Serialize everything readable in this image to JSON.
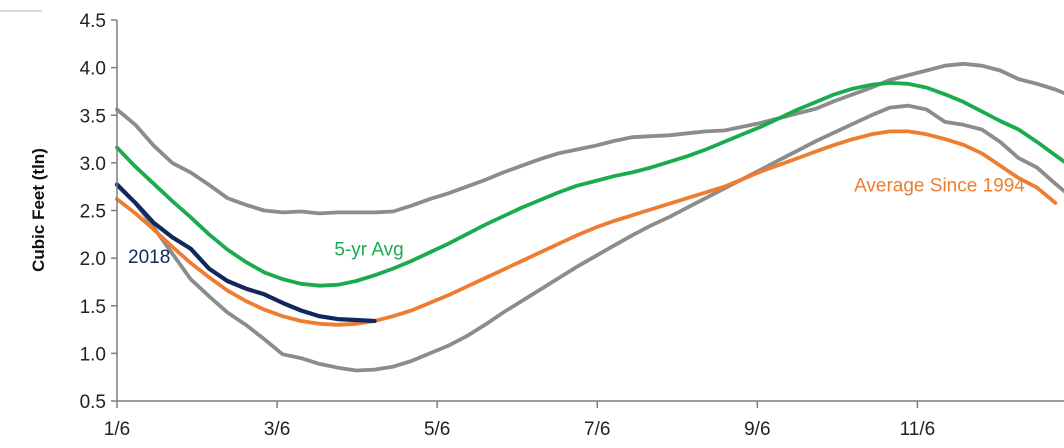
{
  "chart_data": {
    "type": "line",
    "title": "",
    "xlabel": "",
    "ylabel": "Cubic Feet (tln)",
    "ylim": [
      0.5,
      4.5
    ],
    "yticks": [
      "0.5",
      "1.0",
      "1.5",
      "2.0",
      "2.5",
      "3.0",
      "3.5",
      "4.0",
      "4.5"
    ],
    "xlim": [
      0,
      52
    ],
    "xticks": [
      {
        "x": 0,
        "label": "1/6"
      },
      {
        "x": 8.7,
        "label": "3/6"
      },
      {
        "x": 17.4,
        "label": "5/6"
      },
      {
        "x": 26.1,
        "label": "7/6"
      },
      {
        "x": 34.8,
        "label": "9/6"
      },
      {
        "x": 43.5,
        "label": "11/6"
      }
    ],
    "grid": false,
    "series": [
      {
        "key": "max",
        "color": "#8c8c8c",
        "x": [
          0,
          1,
          2,
          3,
          4,
          5,
          6,
          7,
          8,
          9,
          10,
          11,
          12,
          13,
          14,
          15,
          16,
          17,
          18,
          19,
          20,
          21,
          22,
          23,
          24,
          25,
          26,
          27,
          28,
          29,
          30,
          31,
          32,
          33,
          34,
          35,
          36,
          37,
          38,
          39,
          40,
          41,
          42,
          43,
          44,
          45,
          46,
          47,
          48,
          49,
          50,
          51,
          52
        ],
        "y": [
          3.56,
          3.4,
          3.18,
          3.0,
          2.9,
          2.77,
          2.63,
          2.56,
          2.5,
          2.48,
          2.49,
          2.47,
          2.48,
          2.48,
          2.48,
          2.49,
          2.55,
          2.62,
          2.68,
          2.75,
          2.82,
          2.9,
          2.97,
          3.04,
          3.1,
          3.14,
          3.18,
          3.23,
          3.27,
          3.28,
          3.29,
          3.31,
          3.33,
          3.34,
          3.38,
          3.42,
          3.47,
          3.52,
          3.57,
          3.65,
          3.72,
          3.79,
          3.87,
          3.92,
          3.97,
          4.02,
          4.04,
          4.02,
          3.97,
          3.88,
          3.83,
          3.77,
          3.69
        ]
      },
      {
        "key": "min",
        "color": "#8c8c8c",
        "x": [
          0,
          1,
          2,
          3,
          4,
          5,
          6,
          7,
          8,
          9,
          10,
          11,
          12,
          13,
          14,
          15,
          16,
          17,
          18,
          19,
          20,
          21,
          22,
          23,
          24,
          25,
          26,
          27,
          28,
          29,
          30,
          31,
          32,
          33,
          34,
          35,
          36,
          37,
          38,
          39,
          40,
          41,
          42,
          43,
          44,
          45,
          46,
          47,
          48,
          49,
          50,
          51,
          52
        ],
        "y": [
          2.78,
          2.58,
          2.32,
          2.05,
          1.78,
          1.6,
          1.43,
          1.3,
          1.15,
          0.99,
          0.95,
          0.89,
          0.85,
          0.82,
          0.83,
          0.86,
          0.92,
          1.0,
          1.08,
          1.18,
          1.3,
          1.43,
          1.55,
          1.67,
          1.79,
          1.91,
          2.02,
          2.13,
          2.24,
          2.34,
          2.43,
          2.53,
          2.63,
          2.73,
          2.83,
          2.93,
          3.03,
          3.13,
          3.23,
          3.32,
          3.41,
          3.5,
          3.58,
          3.6,
          3.56,
          3.43,
          3.4,
          3.35,
          3.22,
          3.05,
          2.95,
          2.78,
          2.62
        ]
      },
      {
        "key": "avg5",
        "color": "#1aac4c",
        "x": [
          0,
          1,
          2,
          3,
          4,
          5,
          6,
          7,
          8,
          9,
          10,
          11,
          12,
          13,
          14,
          15,
          16,
          17,
          18,
          19,
          20,
          21,
          22,
          23,
          24,
          25,
          26,
          27,
          28,
          29,
          30,
          31,
          32,
          33,
          34,
          35,
          36,
          37,
          38,
          39,
          40,
          41,
          42,
          43,
          44,
          45,
          46,
          47,
          48,
          49,
          50,
          51,
          52
        ],
        "y": [
          3.16,
          2.96,
          2.78,
          2.6,
          2.43,
          2.25,
          2.09,
          1.96,
          1.85,
          1.78,
          1.73,
          1.71,
          1.72,
          1.76,
          1.82,
          1.89,
          1.97,
          2.06,
          2.15,
          2.25,
          2.35,
          2.44,
          2.53,
          2.61,
          2.69,
          2.76,
          2.81,
          2.86,
          2.9,
          2.95,
          3.01,
          3.07,
          3.14,
          3.22,
          3.3,
          3.38,
          3.47,
          3.56,
          3.64,
          3.72,
          3.78,
          3.82,
          3.84,
          3.83,
          3.79,
          3.72,
          3.64,
          3.54,
          3.44,
          3.35,
          3.22,
          3.08,
          2.94
        ]
      },
      {
        "key": "avg1994",
        "color": "#ee7d31",
        "x": [
          0,
          1,
          2,
          3,
          4,
          5,
          6,
          7,
          8,
          9,
          10,
          11,
          12,
          13,
          14,
          15,
          16,
          17,
          18,
          19,
          20,
          21,
          22,
          23,
          24,
          25,
          26,
          27,
          28,
          29,
          30,
          31,
          32,
          33,
          34,
          35,
          36,
          37,
          38,
          39,
          40,
          41,
          42,
          43,
          44,
          45,
          46,
          47,
          48,
          49,
          50,
          51
        ],
        "y": [
          2.62,
          2.47,
          2.3,
          2.12,
          1.95,
          1.8,
          1.66,
          1.55,
          1.46,
          1.39,
          1.34,
          1.31,
          1.3,
          1.31,
          1.34,
          1.39,
          1.45,
          1.53,
          1.61,
          1.7,
          1.79,
          1.88,
          1.97,
          2.06,
          2.15,
          2.24,
          2.32,
          2.39,
          2.45,
          2.51,
          2.57,
          2.63,
          2.69,
          2.75,
          2.83,
          2.91,
          2.98,
          3.05,
          3.12,
          3.19,
          3.25,
          3.3,
          3.33,
          3.33,
          3.3,
          3.25,
          3.19,
          3.1,
          2.97,
          2.84,
          2.74,
          2.58
        ]
      },
      {
        "key": "y2018",
        "color": "#12275b",
        "x": [
          0,
          1,
          2,
          3,
          4,
          5,
          6,
          7,
          8,
          9,
          10,
          11,
          12,
          13,
          14
        ],
        "y": [
          2.77,
          2.58,
          2.37,
          2.22,
          2.1,
          1.89,
          1.76,
          1.68,
          1.62,
          1.53,
          1.45,
          1.39,
          1.36,
          1.35,
          1.34
        ]
      }
    ],
    "annotations": [
      {
        "text": "5-yr Avg",
        "color": "#1aac4c",
        "x": 13.7,
        "y": 2.03,
        "anchor": "middle"
      },
      {
        "text": "Average Since 1994",
        "color": "#ee7d31",
        "x": 44.7,
        "y": 2.7,
        "anchor": "middle"
      },
      {
        "text": "2018",
        "color": "#12275b",
        "x": 0.6,
        "y": 1.95,
        "anchor": "start"
      }
    ]
  }
}
